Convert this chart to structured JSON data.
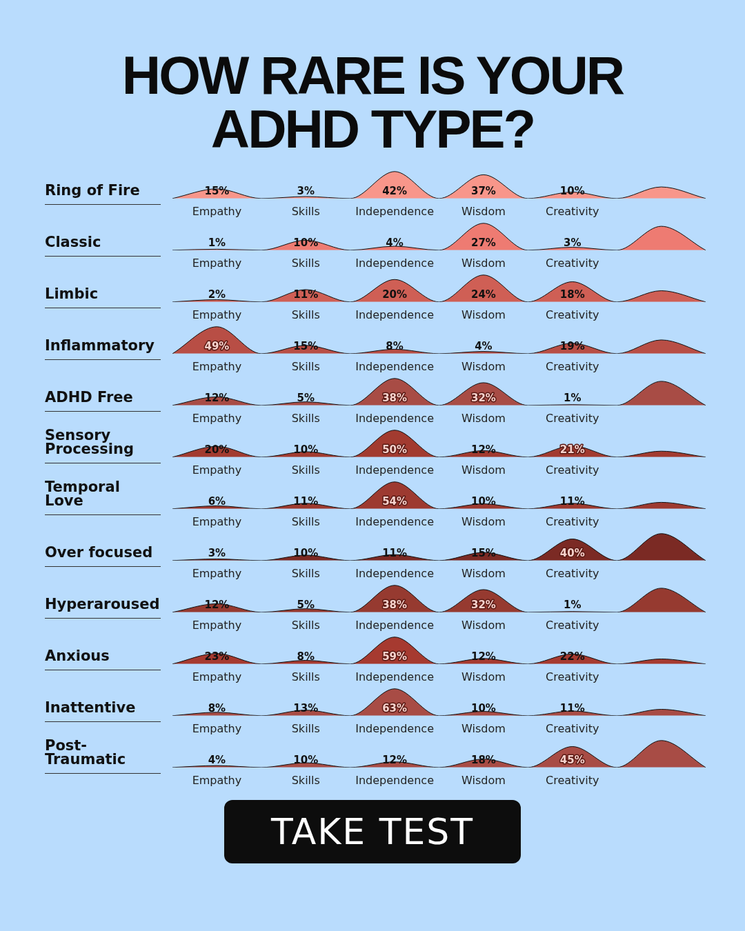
{
  "chart_data": [
    {
      "type": "area",
      "title": "Ring of Fire",
      "annotations": [
        "HOW RARE IS YOUR ADHD TYPE?"
      ],
      "categories": [
        null,
        "Empathy",
        null,
        "Skills",
        null,
        "Independence",
        null,
        "Wisdom",
        null,
        "Creativity",
        null,
        null,
        null
      ],
      "values": [
        0,
        15,
        0,
        3,
        0,
        42,
        0,
        37,
        0,
        10,
        0,
        18,
        0
      ],
      "value_labels": [
        null,
        "15%",
        null,
        "3%",
        null,
        "42%",
        null,
        "37%",
        null,
        "10%",
        null,
        null,
        null
      ],
      "color": "#f8968a"
    },
    {
      "type": "area",
      "title": "Classic",
      "categories": [
        null,
        "Empathy",
        null,
        "Skills",
        null,
        "Independence",
        null,
        "Wisdom",
        null,
        "Creativity",
        null,
        null,
        null
      ],
      "values": [
        0,
        1,
        0,
        10,
        0,
        4,
        0,
        27,
        0,
        3,
        0,
        24,
        0
      ],
      "value_labels": [
        null,
        "1%",
        null,
        "10%",
        null,
        "4%",
        null,
        "27%",
        null,
        "3%",
        null,
        null,
        null
      ],
      "color": "#ee7b72"
    },
    {
      "type": "area",
      "title": "Limbic",
      "categories": [
        null,
        "Empathy",
        null,
        "Skills",
        null,
        "Independence",
        null,
        "Wisdom",
        null,
        "Creativity",
        null,
        null,
        null
      ],
      "values": [
        0,
        2,
        0,
        11,
        0,
        20,
        0,
        24,
        0,
        18,
        0,
        10,
        0
      ],
      "value_labels": [
        null,
        "2%",
        null,
        "11%",
        null,
        "20%",
        null,
        "24%",
        null,
        "18%",
        null,
        null,
        null
      ],
      "color": "#cf5f55"
    },
    {
      "type": "area",
      "title": "Inflammatory",
      "categories": [
        null,
        "Empathy",
        null,
        "Skills",
        null,
        "Independence",
        null,
        "Wisdom",
        null,
        "Creativity",
        null,
        null,
        null
      ],
      "values": [
        0,
        49,
        0,
        15,
        0,
        8,
        0,
        4,
        0,
        19,
        0,
        25,
        0
      ],
      "value_labels": [
        null,
        "49%",
        null,
        "15%",
        null,
        "8%",
        null,
        "4%",
        null,
        "19%",
        null,
        null,
        null
      ],
      "color": "#b84e45"
    },
    {
      "type": "area",
      "title": "ADHD Free",
      "categories": [
        null,
        "Empathy",
        null,
        "Skills",
        null,
        "Independence",
        null,
        "Wisdom",
        null,
        "Creativity",
        null,
        null,
        null
      ],
      "values": [
        0,
        12,
        0,
        5,
        0,
        38,
        0,
        32,
        0,
        1,
        0,
        34,
        0
      ],
      "value_labels": [
        null,
        "12%",
        null,
        "5%",
        null,
        "38%",
        null,
        "32%",
        null,
        "1%",
        null,
        null,
        null
      ],
      "color": "#a84c45"
    },
    {
      "type": "area",
      "title": "Sensory Processing",
      "categories": [
        null,
        "Empathy",
        null,
        "Skills",
        null,
        "Independence",
        null,
        "Wisdom",
        null,
        "Creativity",
        null,
        null,
        null
      ],
      "values": [
        0,
        20,
        0,
        10,
        0,
        50,
        0,
        12,
        0,
        21,
        0,
        11,
        0
      ],
      "value_labels": [
        null,
        "20%",
        null,
        "10%",
        null,
        "50%",
        null,
        "12%",
        null,
        "21%",
        null,
        null,
        null
      ],
      "color": "#a23b30"
    },
    {
      "type": "area",
      "title": "Temporal Love",
      "categories": [
        null,
        "Empathy",
        null,
        "Skills",
        null,
        "Independence",
        null,
        "Wisdom",
        null,
        "Creativity",
        null,
        null,
        null
      ],
      "values": [
        0,
        6,
        0,
        11,
        0,
        54,
        0,
        10,
        0,
        11,
        0,
        13,
        0
      ],
      "value_labels": [
        null,
        "6%",
        null,
        "11%",
        null,
        "54%",
        null,
        "10%",
        null,
        "11%",
        null,
        null,
        null
      ],
      "color": "#9d3a30"
    },
    {
      "type": "area",
      "title": "Over focused",
      "categories": [
        null,
        "Empathy",
        null,
        "Skills",
        null,
        "Independence",
        null,
        "Wisdom",
        null,
        "Creativity",
        null,
        null,
        null
      ],
      "values": [
        0,
        3,
        0,
        10,
        0,
        11,
        0,
        15,
        0,
        40,
        0,
        50,
        0
      ],
      "value_labels": [
        null,
        "3%",
        null,
        "10%",
        null,
        "11%",
        null,
        "15%",
        null,
        "40%",
        null,
        null,
        null
      ],
      "color": "#7b2a24"
    },
    {
      "type": "area",
      "title": "Hyperaroused",
      "categories": [
        null,
        "Empathy",
        null,
        "Skills",
        null,
        "Independence",
        null,
        "Wisdom",
        null,
        "Creativity",
        null,
        null,
        null
      ],
      "values": [
        0,
        12,
        0,
        5,
        0,
        38,
        0,
        32,
        0,
        1,
        0,
        34,
        0
      ],
      "value_labels": [
        null,
        "12%",
        null,
        "5%",
        null,
        "38%",
        null,
        "32%",
        null,
        "1%",
        null,
        null,
        null
      ],
      "color": "#963a30"
    },
    {
      "type": "area",
      "title": "Anxious",
      "categories": [
        null,
        "Empathy",
        null,
        "Skills",
        null,
        "Independence",
        null,
        "Wisdom",
        null,
        "Creativity",
        null,
        null,
        null
      ],
      "values": [
        0,
        23,
        0,
        8,
        0,
        59,
        0,
        12,
        0,
        22,
        0,
        11,
        0
      ],
      "value_labels": [
        null,
        "23%",
        null,
        "8%",
        null,
        "59%",
        null,
        "12%",
        null,
        "22%",
        null,
        null,
        null
      ],
      "color": "#a63a30"
    },
    {
      "type": "area",
      "title": "Inattentive",
      "categories": [
        null,
        "Empathy",
        null,
        "Skills",
        null,
        "Independence",
        null,
        "Wisdom",
        null,
        "Creativity",
        null,
        null,
        null
      ],
      "values": [
        0,
        8,
        0,
        13,
        0,
        63,
        0,
        10,
        0,
        11,
        0,
        15,
        0
      ],
      "value_labels": [
        null,
        "8%",
        null,
        "13%",
        null,
        "63%",
        null,
        "10%",
        null,
        "11%",
        null,
        null,
        null
      ],
      "color": "#a84c45"
    },
    {
      "type": "area",
      "title": "Post-Traumatic",
      "annotations": [
        "TAKE TEST"
      ],
      "categories": [
        null,
        "Empathy",
        null,
        "Skills",
        null,
        "Independence",
        null,
        "Wisdom",
        null,
        "Creativity",
        null,
        null,
        null
      ],
      "values": [
        0,
        4,
        0,
        10,
        0,
        12,
        0,
        18,
        0,
        45,
        0,
        58,
        0
      ],
      "value_labels": [
        null,
        "4%",
        null,
        "10%",
        null,
        "12%",
        null,
        "18%",
        null,
        "45%",
        null,
        null,
        null
      ],
      "color": "#a84c45"
    }
  ]
}
